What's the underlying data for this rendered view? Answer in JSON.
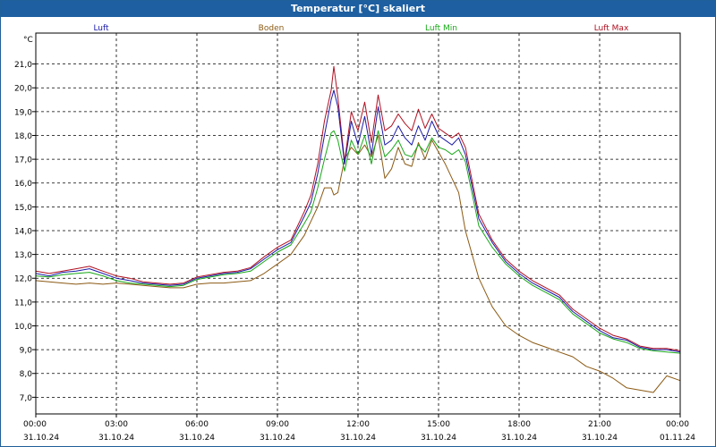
{
  "window": {
    "title": "Temperatur [°C] skaliert"
  },
  "colors": {
    "titlebar": "#1d5fa0",
    "luft": "#1a1aa8",
    "boden": "#8b5a14",
    "luft_min": "#18a818",
    "luft_max": "#b01020",
    "grid": "#000000",
    "axis_text": "#000000"
  },
  "chart_data": {
    "type": "line",
    "title": "Temperatur [°C] skaliert",
    "ylabel": "°C",
    "xlabel": "",
    "ylim": [
      6.3,
      22.3
    ],
    "xlim": [
      0,
      24
    ],
    "grid": true,
    "legend_position": "top",
    "yticks": [
      7.0,
      8.0,
      9.0,
      10.0,
      11.0,
      12.0,
      13.0,
      14.0,
      15.0,
      16.0,
      17.0,
      18.0,
      19.0,
      20.0,
      21.0
    ],
    "ytick_labels": [
      "7,0",
      "8,0",
      "9,0",
      "10,0",
      "11,0",
      "12,0",
      "13,0",
      "14,0",
      "15,0",
      "16,0",
      "17,0",
      "18,0",
      "19,0",
      "20,0",
      "21,0"
    ],
    "xticks": [
      {
        "x": 0,
        "time": "00:00",
        "date": "31.10.24"
      },
      {
        "x": 3,
        "time": "03:00",
        "date": "31.10.24"
      },
      {
        "x": 6,
        "time": "06:00",
        "date": "31.10.24"
      },
      {
        "x": 9,
        "time": "09:00",
        "date": "31.10.24"
      },
      {
        "x": 12,
        "time": "12:00",
        "date": "31.10.24"
      },
      {
        "x": 15,
        "time": "15:00",
        "date": "31.10.24"
      },
      {
        "x": 18,
        "time": "18:00",
        "date": "31.10.24"
      },
      {
        "x": 21,
        "time": "21:00",
        "date": "31.10.24"
      },
      {
        "x": 24,
        "time": "00:00",
        "date": "01.11.24"
      }
    ],
    "x": [
      0,
      0.5,
      1,
      1.5,
      2,
      2.5,
      3,
      3.5,
      4,
      4.5,
      5,
      5.5,
      6,
      6.5,
      7,
      7.5,
      8,
      8.5,
      9,
      9.5,
      10,
      10.25,
      10.5,
      10.75,
      11,
      11.1,
      11.25,
      11.5,
      11.75,
      12,
      12.25,
      12.5,
      12.75,
      13,
      13.25,
      13.5,
      13.75,
      14,
      14.25,
      14.5,
      14.75,
      15,
      15.25,
      15.5,
      15.75,
      16,
      16.5,
      17,
      17.5,
      18,
      18.5,
      19,
      19.5,
      20,
      20.5,
      21,
      21.5,
      22,
      22.5,
      23,
      23.5,
      24
    ],
    "series": [
      {
        "name": "Luft",
        "values": [
          12.2,
          12.1,
          12.25,
          12.3,
          12.4,
          12.2,
          12.0,
          11.9,
          11.8,
          11.75,
          11.7,
          11.75,
          12.0,
          12.1,
          12.2,
          12.25,
          12.4,
          12.8,
          13.2,
          13.5,
          14.6,
          15.2,
          16.4,
          18.0,
          19.5,
          19.9,
          19.2,
          16.8,
          18.6,
          17.6,
          18.8,
          17.2,
          19.2,
          17.6,
          17.8,
          18.4,
          17.9,
          17.6,
          18.4,
          17.8,
          18.6,
          18.0,
          17.8,
          17.6,
          17.9,
          17.2,
          14.5,
          13.5,
          12.7,
          12.2,
          11.8,
          11.5,
          11.2,
          10.6,
          10.2,
          9.8,
          9.5,
          9.4,
          9.1,
          9.0,
          9.0,
          8.9
        ]
      },
      {
        "name": "Boden",
        "values": [
          11.9,
          11.85,
          11.8,
          11.75,
          11.8,
          11.75,
          11.8,
          11.75,
          11.7,
          11.65,
          11.6,
          11.6,
          11.75,
          11.8,
          11.8,
          11.85,
          11.9,
          12.2,
          12.6,
          13.0,
          13.8,
          14.4,
          15.0,
          15.8,
          15.8,
          15.5,
          15.6,
          17.0,
          17.5,
          17.2,
          17.6,
          17.1,
          18.0,
          16.2,
          16.6,
          17.5,
          16.8,
          16.7,
          17.7,
          17.0,
          17.8,
          17.3,
          16.8,
          16.2,
          15.6,
          14.0,
          12.0,
          10.8,
          10.0,
          9.6,
          9.3,
          9.1,
          8.9,
          8.7,
          8.3,
          8.1,
          7.8,
          7.4,
          7.3,
          7.2,
          7.9,
          7.7
        ]
      },
      {
        "name": "Luft Min",
        "values": [
          12.1,
          12.05,
          12.15,
          12.2,
          12.25,
          12.1,
          11.9,
          11.8,
          11.75,
          11.7,
          11.65,
          11.7,
          11.95,
          12.05,
          12.15,
          12.2,
          12.3,
          12.7,
          13.1,
          13.4,
          14.3,
          14.8,
          15.8,
          17.0,
          18.1,
          18.2,
          17.8,
          16.5,
          17.8,
          17.2,
          18.0,
          16.8,
          18.2,
          17.1,
          17.4,
          17.8,
          17.2,
          17.1,
          17.6,
          17.3,
          17.9,
          17.5,
          17.4,
          17.2,
          17.4,
          16.9,
          14.2,
          13.3,
          12.6,
          12.1,
          11.7,
          11.4,
          11.1,
          10.5,
          10.1,
          9.7,
          9.45,
          9.3,
          9.05,
          8.95,
          8.9,
          8.85
        ]
      },
      {
        "name": "Luft Max",
        "values": [
          12.3,
          12.2,
          12.3,
          12.4,
          12.5,
          12.3,
          12.1,
          12.0,
          11.85,
          11.8,
          11.75,
          11.8,
          12.05,
          12.15,
          12.25,
          12.3,
          12.45,
          12.9,
          13.3,
          13.6,
          14.8,
          15.5,
          16.8,
          18.6,
          19.9,
          20.9,
          19.6,
          16.9,
          19.0,
          18.2,
          19.4,
          17.7,
          19.7,
          18.2,
          18.4,
          18.9,
          18.5,
          18.2,
          19.1,
          18.3,
          18.9,
          18.3,
          18.1,
          17.9,
          18.1,
          17.5,
          14.7,
          13.6,
          12.8,
          12.3,
          11.9,
          11.6,
          11.3,
          10.7,
          10.3,
          9.9,
          9.6,
          9.45,
          9.15,
          9.05,
          9.05,
          8.95
        ]
      }
    ]
  }
}
